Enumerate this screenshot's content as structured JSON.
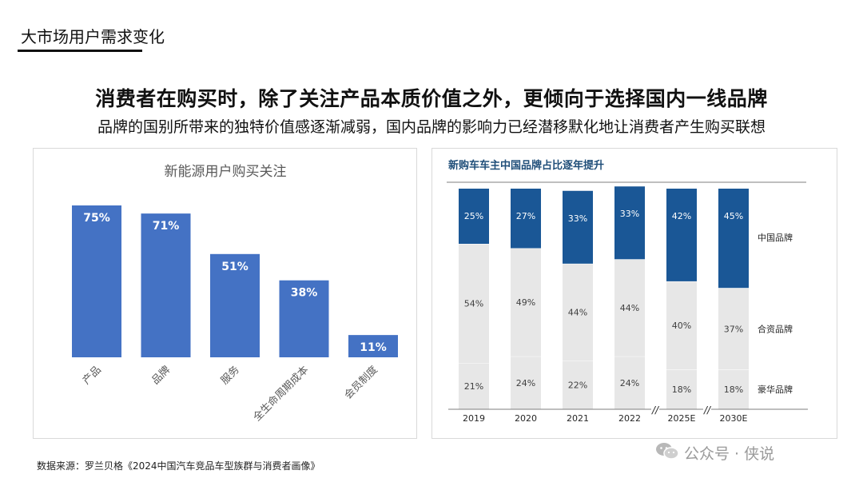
{
  "page": {
    "section_title": "大市场用户需求变化",
    "headline": "消费者在购买时，除了关注产品本质价值之外，更倾向于选择国内一线品牌",
    "subline": "品牌的国别所带来的独特价值感逐渐减弱，国内品牌的影响力已经潜移默化地让消费者产生购买联想",
    "source": "数据来源：罗兰贝格《2024中国汽车竞品车型族群与消费者画像》",
    "watermark": "公众号 · 侠说"
  },
  "colors": {
    "blue_bar": "#4472c4",
    "dark_blue": "#1a5796",
    "light_gray": "#e7e7e7",
    "title_blue": "#1f4e79"
  },
  "chart_data": [
    {
      "type": "bar",
      "title": "新能源用户购买关注",
      "categories": [
        "产品",
        "品牌",
        "服务",
        "全生命周期成本",
        "会员制度"
      ],
      "values": [
        75,
        71,
        51,
        38,
        11
      ],
      "value_labels": [
        "75%",
        "71%",
        "51%",
        "38%",
        "11%"
      ],
      "ylim": [
        0,
        100
      ],
      "grid": false,
      "legend": "none"
    },
    {
      "type": "bar",
      "stacked": true,
      "title": "新购车车主中国品牌占比逐年提升",
      "categories": [
        "2019",
        "2020",
        "2021",
        "2022",
        "2025E",
        "2030E"
      ],
      "series": [
        {
          "name": "豪华品牌",
          "values": [
            21,
            24,
            22,
            24,
            18,
            18
          ],
          "labels": [
            "21%",
            "24%",
            "22%",
            "24%",
            "18%",
            "18%"
          ]
        },
        {
          "name": "合资品牌",
          "values": [
            54,
            49,
            44,
            44,
            40,
            37
          ],
          "labels": [
            "54%",
            "49%",
            "44%",
            "44%",
            "40%",
            "37%"
          ]
        },
        {
          "name": "中国品牌",
          "values": [
            25,
            27,
            33,
            33,
            42,
            45
          ],
          "labels": [
            "25%",
            "27%",
            "33%",
            "33%",
            "42%",
            "45%"
          ]
        }
      ],
      "axis_break_markers": [
        "//",
        "//"
      ],
      "ylim": [
        0,
        100
      ],
      "legend": "right"
    }
  ]
}
